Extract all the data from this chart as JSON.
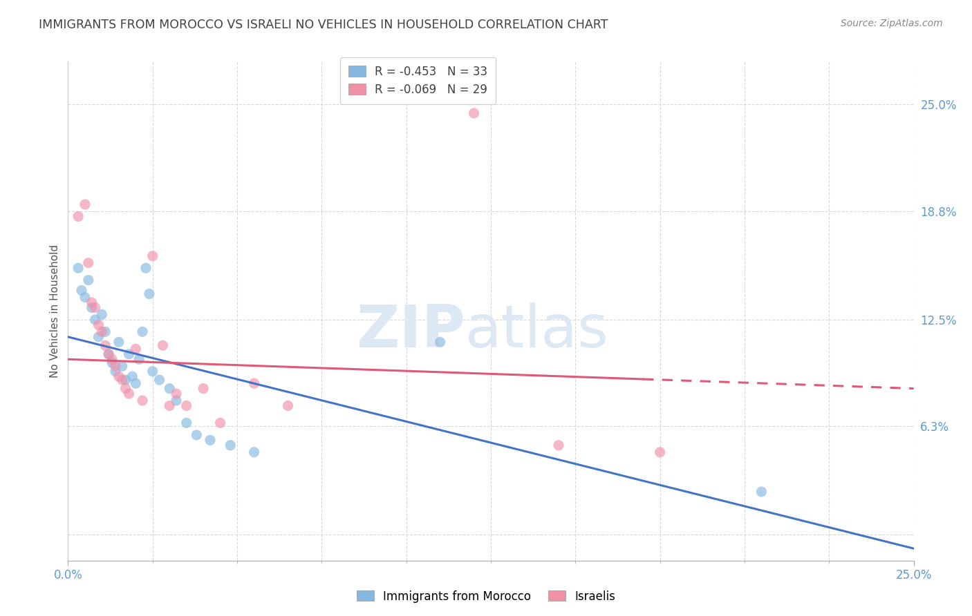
{
  "title": "IMMIGRANTS FROM MOROCCO VS ISRAELI NO VEHICLES IN HOUSEHOLD CORRELATION CHART",
  "source": "Source: ZipAtlas.com",
  "ylabel": "No Vehicles in Household",
  "xmin": 0.0,
  "xmax": 25.0,
  "ymin": -1.5,
  "ymax": 27.5,
  "grid_y_vals": [
    0.0,
    6.3,
    12.5,
    18.8,
    25.0
  ],
  "right_ytick_labels": [
    "6.3%",
    "12.5%",
    "18.8%",
    "25.0%"
  ],
  "right_ytick_vals": [
    6.3,
    12.5,
    18.8,
    25.0
  ],
  "legend_entries": [
    {
      "label": "R = -0.453   N = 33",
      "color": "#a8c4e0"
    },
    {
      "label": "R = -0.069   N = 29",
      "color": "#f4a0b0"
    }
  ],
  "legend_title_blue": "Immigrants from Morocco",
  "legend_title_pink": "Israelis",
  "blue_scatter": [
    [
      0.3,
      15.5
    ],
    [
      0.4,
      14.2
    ],
    [
      0.5,
      13.8
    ],
    [
      0.6,
      14.8
    ],
    [
      0.7,
      13.2
    ],
    [
      0.8,
      12.5
    ],
    [
      0.9,
      11.5
    ],
    [
      1.0,
      12.8
    ],
    [
      1.1,
      11.8
    ],
    [
      1.2,
      10.5
    ],
    [
      1.3,
      10.0
    ],
    [
      1.4,
      9.5
    ],
    [
      1.5,
      11.2
    ],
    [
      1.6,
      9.8
    ],
    [
      1.7,
      9.0
    ],
    [
      1.8,
      10.5
    ],
    [
      1.9,
      9.2
    ],
    [
      2.0,
      8.8
    ],
    [
      2.1,
      10.2
    ],
    [
      2.2,
      11.8
    ],
    [
      2.3,
      15.5
    ],
    [
      2.4,
      14.0
    ],
    [
      2.5,
      9.5
    ],
    [
      2.7,
      9.0
    ],
    [
      3.0,
      8.5
    ],
    [
      3.2,
      7.8
    ],
    [
      3.5,
      6.5
    ],
    [
      3.8,
      5.8
    ],
    [
      4.2,
      5.5
    ],
    [
      4.8,
      5.2
    ],
    [
      5.5,
      4.8
    ],
    [
      11.0,
      11.2
    ],
    [
      20.5,
      2.5
    ]
  ],
  "pink_scatter": [
    [
      0.3,
      18.5
    ],
    [
      0.5,
      19.2
    ],
    [
      0.6,
      15.8
    ],
    [
      0.7,
      13.5
    ],
    [
      0.8,
      13.2
    ],
    [
      0.9,
      12.2
    ],
    [
      1.0,
      11.8
    ],
    [
      1.1,
      11.0
    ],
    [
      1.2,
      10.5
    ],
    [
      1.3,
      10.2
    ],
    [
      1.4,
      9.8
    ],
    [
      1.5,
      9.2
    ],
    [
      1.6,
      9.0
    ],
    [
      1.7,
      8.5
    ],
    [
      1.8,
      8.2
    ],
    [
      2.0,
      10.8
    ],
    [
      2.2,
      7.8
    ],
    [
      2.5,
      16.2
    ],
    [
      2.8,
      11.0
    ],
    [
      3.0,
      7.5
    ],
    [
      3.2,
      8.2
    ],
    [
      3.5,
      7.5
    ],
    [
      4.0,
      8.5
    ],
    [
      4.5,
      6.5
    ],
    [
      5.5,
      8.8
    ],
    [
      6.5,
      7.5
    ],
    [
      12.0,
      24.5
    ],
    [
      14.5,
      5.2
    ],
    [
      17.5,
      4.8
    ]
  ],
  "blue_line_x": [
    0.0,
    25.0
  ],
  "blue_line_y": [
    11.5,
    -0.8
  ],
  "pink_line_x": [
    0.0,
    25.0
  ],
  "pink_line_y": [
    10.2,
    8.5
  ],
  "pink_line_solid_end_x": 17.0,
  "watermark_zip": "ZIP",
  "watermark_atlas": "atlas",
  "background_color": "#ffffff",
  "scatter_alpha": 0.65,
  "scatter_size": 120,
  "blue_color": "#85b8e0",
  "pink_color": "#f090a8",
  "blue_line_color": "#4472c4",
  "pink_line_color": "#e05878",
  "grid_color": "#d8d8d8",
  "title_color": "#404040",
  "axis_label_color": "#5b9bd5",
  "right_label_color": "#5b9bd5"
}
